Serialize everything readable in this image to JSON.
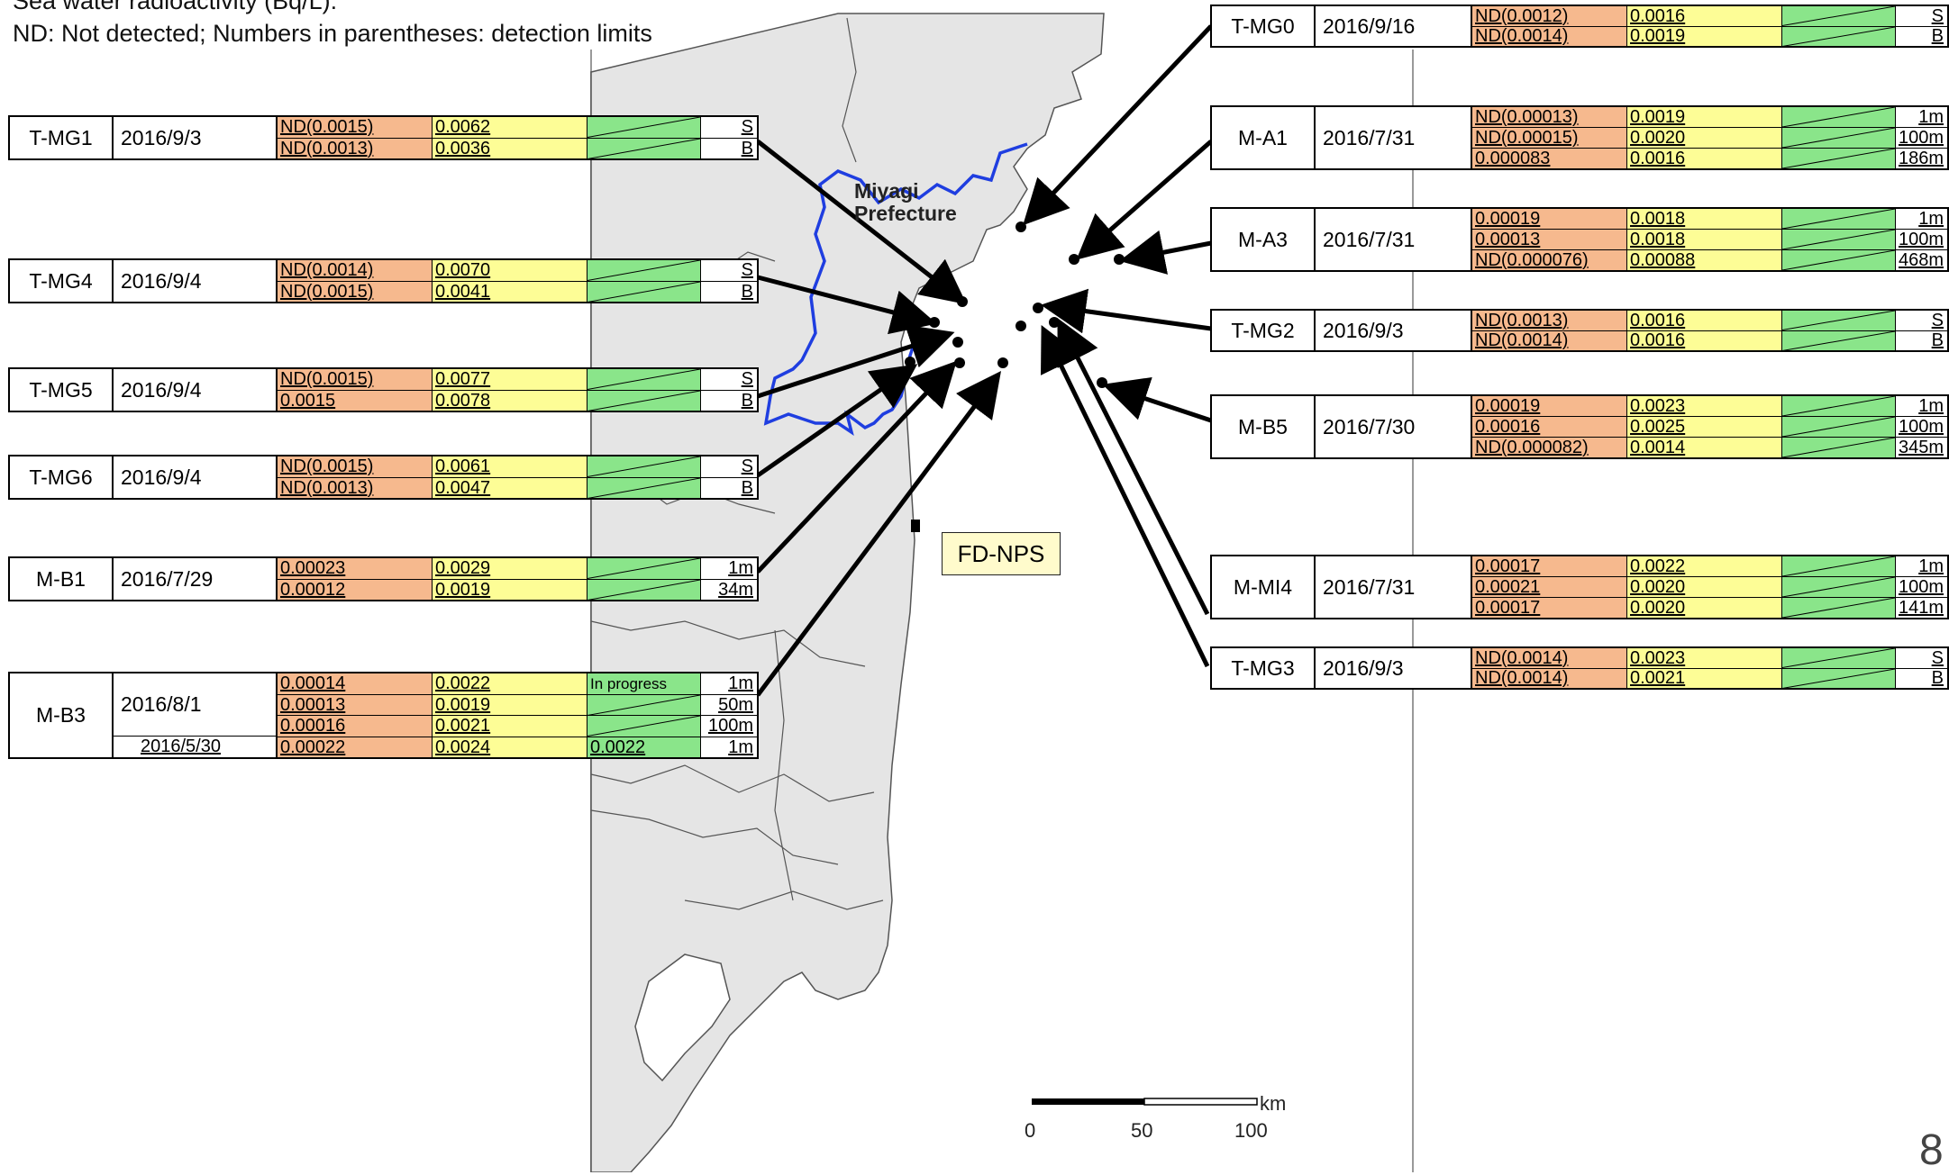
{
  "header": {
    "line1": "Sea water radioactivity (Bq/L):",
    "line2": "ND: Not detected;  Numbers in parentheses: detection limits"
  },
  "map": {
    "prefecture_label_1": "Miyagi",
    "prefecture_label_2": "Prefecture",
    "plant_label": "FD-NPS",
    "scale": {
      "tick_0": "0",
      "tick_50": "50",
      "tick_100": "100",
      "unit": "km"
    },
    "colors": {
      "land": "#e5e5e5",
      "border": "#1f3ee0",
      "sea": "#ffffff"
    }
  },
  "column_colors": {
    "col1": "#f6b98e",
    "col2": "#fdfd96",
    "col3": "#8ae58a"
  },
  "stations_left": [
    {
      "station": "T-MG1",
      "date": "2016/9/3",
      "rows": [
        {
          "c1": "ND(0.0015)",
          "c2": "0.0062",
          "c3": "",
          "c4": "S"
        },
        {
          "c1": "ND(0.0013)",
          "c2": "0.0036",
          "c3": "",
          "c4": "B"
        }
      ]
    },
    {
      "station": "T-MG4",
      "date": "2016/9/4",
      "rows": [
        {
          "c1": "ND(0.0014)",
          "c2": "0.0070",
          "c3": "",
          "c4": "S"
        },
        {
          "c1": "ND(0.0015)",
          "c2": "0.0041",
          "c3": "",
          "c4": "B"
        }
      ]
    },
    {
      "station": "T-MG5",
      "date": "2016/9/4",
      "rows": [
        {
          "c1": "ND(0.0015)",
          "c2": "0.0077",
          "c3": "",
          "c4": "S"
        },
        {
          "c1": "0.0015",
          "c2": "0.0078",
          "c3": "",
          "c4": "B"
        }
      ]
    },
    {
      "station": "T-MG6",
      "date": "2016/9/4",
      "rows": [
        {
          "c1": "ND(0.0015)",
          "c2": "0.0061",
          "c3": "",
          "c4": "S"
        },
        {
          "c1": "ND(0.0013)",
          "c2": "0.0047",
          "c3": "",
          "c4": "B"
        }
      ]
    },
    {
      "station": "M-B1",
      "date": "2016/7/29",
      "rows": [
        {
          "c1": "0.00023",
          "c2": "0.0029",
          "c3": "",
          "c4": "1m"
        },
        {
          "c1": "0.00012",
          "c2": "0.0019",
          "c3": "",
          "c4": "34m"
        }
      ]
    }
  ],
  "station_mb3": {
    "station": "M-B3",
    "date1": "2016/8/1",
    "date2": "2016/5/30",
    "rows": [
      {
        "c1": "0.00014",
        "c2": "0.0022",
        "c3": "In progress",
        "c4": "1m"
      },
      {
        "c1": "0.00013",
        "c2": "0.0019",
        "c3": "",
        "c4": "50m"
      },
      {
        "c1": "0.00016",
        "c2": "0.0021",
        "c3": "",
        "c4": "100m"
      },
      {
        "c1": "0.00022",
        "c2": "0.0024",
        "c3": "0.0022",
        "c4": "1m"
      }
    ]
  },
  "stations_right": [
    {
      "station": "T-MG0",
      "date": "2016/9/16",
      "rows": [
        {
          "c1": "ND(0.0012)",
          "c2": "0.0016",
          "c3": "",
          "c4": "S"
        },
        {
          "c1": "ND(0.0014)",
          "c2": "0.0019",
          "c3": "",
          "c4": "B"
        }
      ]
    },
    {
      "station": "M-A1",
      "date": "2016/7/31",
      "rows": [
        {
          "c1": "ND(0.00013)",
          "c2": "0.0019",
          "c3": "",
          "c4": "1m"
        },
        {
          "c1": "ND(0.00015)",
          "c2": "0.0020",
          "c3": "",
          "c4": "100m"
        },
        {
          "c1": "0.000083",
          "c2": "0.0016",
          "c3": "",
          "c4": "186m"
        }
      ]
    },
    {
      "station": "M-A3",
      "date": "2016/7/31",
      "rows": [
        {
          "c1": "0.00019",
          "c2": "0.0018",
          "c3": "",
          "c4": "1m"
        },
        {
          "c1": "0.00013",
          "c2": "0.0018",
          "c3": "",
          "c4": "100m"
        },
        {
          "c1": "ND(0.000076)",
          "c2": "0.00088",
          "c3": "",
          "c4": "468m"
        }
      ]
    },
    {
      "station": "T-MG2",
      "date": "2016/9/3",
      "rows": [
        {
          "c1": "ND(0.0013)",
          "c2": "0.0016",
          "c3": "",
          "c4": "S"
        },
        {
          "c1": "ND(0.0014)",
          "c2": "0.0016",
          "c3": "",
          "c4": "B"
        }
      ]
    },
    {
      "station": "M-B5",
      "date": "2016/7/30",
      "rows": [
        {
          "c1": "0.00019",
          "c2": "0.0023",
          "c3": "",
          "c4": "1m"
        },
        {
          "c1": "0.00016",
          "c2": "0.0025",
          "c3": "",
          "c4": "100m"
        },
        {
          "c1": "ND(0.000082)",
          "c2": "0.0014",
          "c3": "",
          "c4": "345m"
        }
      ]
    },
    {
      "station": "M-MI4",
      "date": "2016/7/31",
      "rows": [
        {
          "c1": "0.00017",
          "c2": "0.0022",
          "c3": "",
          "c4": "1m"
        },
        {
          "c1": "0.00021",
          "c2": "0.0020",
          "c3": "",
          "c4": "100m"
        },
        {
          "c1": "0.00017",
          "c2": "0.0020",
          "c3": "",
          "c4": "141m"
        }
      ]
    },
    {
      "station": "T-MG3",
      "date": "2016/9/3",
      "rows": [
        {
          "c1": "ND(0.0014)",
          "c2": "0.0023",
          "c3": "",
          "c4": "S"
        },
        {
          "c1": "ND(0.0014)",
          "c2": "0.0021",
          "c3": "",
          "c4": "B"
        }
      ]
    }
  ],
  "page_number": "8"
}
